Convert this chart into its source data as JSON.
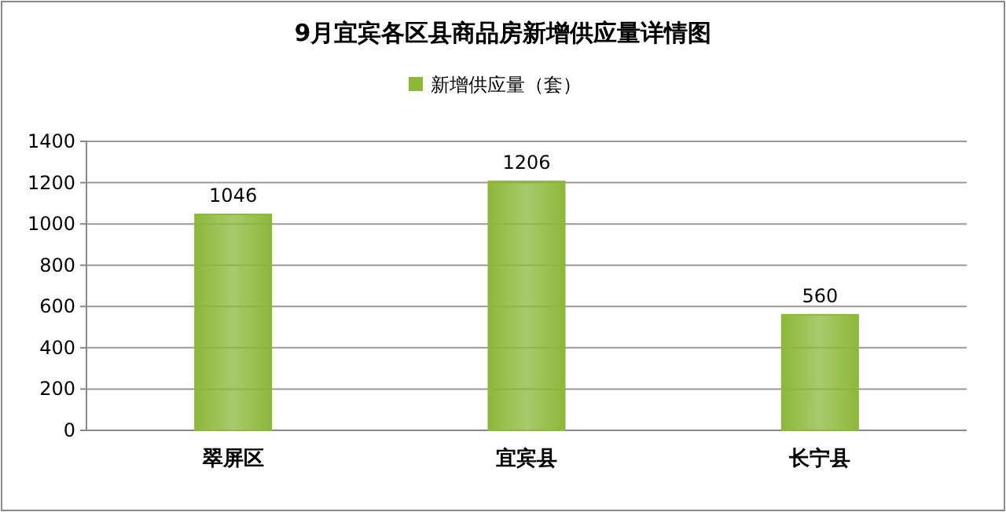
{
  "chart_data": {
    "type": "bar",
    "title": "9月宜宾各区县商品房新增供应量详情图",
    "categories": [
      "翠屏区",
      "宜宾县",
      "长宁县"
    ],
    "series": [
      {
        "name": "新增供应量（套）",
        "color": "#8db83a",
        "values": [
          1046,
          1206,
          560
        ]
      }
    ],
    "ylim": [
      0,
      1400
    ],
    "yticks": [
      0,
      200,
      400,
      600,
      800,
      1000,
      1200,
      1400
    ],
    "grid": "y",
    "legend": "top",
    "data_labels": true
  }
}
